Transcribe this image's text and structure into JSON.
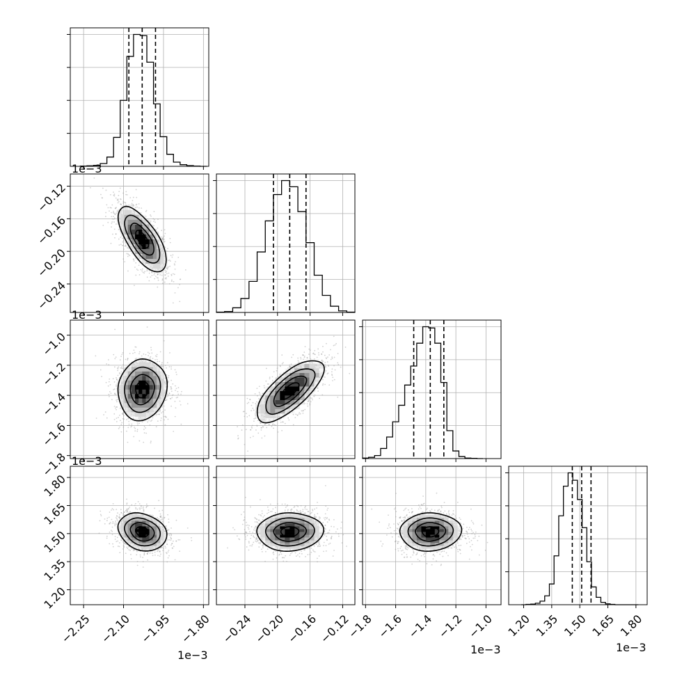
{
  "chart_data": {
    "type": "corner",
    "grid": true,
    "parameters": [
      {
        "lim": [
          -2.3,
          -1.78
        ],
        "ticks": [
          -2.25,
          -2.1,
          -1.95,
          -1.8
        ],
        "tick_labels": [
          "−2.25",
          "−2.10",
          "−1.95",
          "−1.80"
        ],
        "multiplier": "1e−3",
        "quantiles": [
          -2.08,
          -2.03,
          -1.98
        ],
        "hist_centers": [
          -2.25,
          -2.225,
          -2.2,
          -2.175,
          -2.15,
          -2.125,
          -2.1,
          -2.075,
          -2.05,
          -2.025,
          -2.0,
          -1.975,
          -1.95,
          -1.925,
          -1.9,
          -1.875,
          -1.85,
          -1.825,
          -1.8
        ],
        "hist_counts": [
          1,
          2,
          4,
          12,
          40,
          125,
          285,
          475,
          570,
          565,
          450,
          270,
          128,
          52,
          18,
          7,
          3,
          1,
          0
        ]
      },
      {
        "lim": [
          -0.275,
          -0.105
        ],
        "ticks": [
          -0.24,
          -0.2,
          -0.16,
          -0.12
        ],
        "tick_labels": [
          "−0.24",
          "−0.20",
          "−0.16",
          "−0.12"
        ],
        "multiplier": "1e−3",
        "quantiles": [
          -0.205,
          -0.185,
          -0.165
        ],
        "hist_centers": [
          -0.27,
          -0.26,
          -0.25,
          -0.24,
          -0.23,
          -0.22,
          -0.21,
          -0.2,
          -0.19,
          -0.18,
          -0.17,
          -0.16,
          -0.15,
          -0.14,
          -0.13,
          -0.12,
          -0.11
        ],
        "hist_counts": [
          1,
          3,
          15,
          45,
          100,
          195,
          295,
          380,
          425,
          405,
          325,
          225,
          120,
          55,
          20,
          5,
          1
        ]
      },
      {
        "lim": [
          -1.82,
          -0.9
        ],
        "ticks": [
          -1.8,
          -1.6,
          -1.4,
          -1.2,
          -1.0
        ],
        "tick_labels": [
          "−1.8",
          "−1.6",
          "−1.4",
          "−1.2",
          "−1.0"
        ],
        "multiplier": "1e−3",
        "quantiles": [
          -1.48,
          -1.37,
          -1.28
        ],
        "hist_centers": [
          -1.8,
          -1.76,
          -1.72,
          -1.68,
          -1.64,
          -1.6,
          -1.56,
          -1.52,
          -1.48,
          -1.44,
          -1.4,
          -1.36,
          -1.32,
          -1.28,
          -1.24,
          -1.2,
          -1.16,
          -1.12,
          -1.08,
          -1.04
        ],
        "hist_counts": [
          2,
          5,
          12,
          40,
          85,
          145,
          210,
          290,
          365,
          455,
          520,
          515,
          455,
          300,
          110,
          30,
          8,
          2,
          1,
          0
        ]
      },
      {
        "lim": [
          1.12,
          1.86
        ],
        "ticks": [
          1.2,
          1.35,
          1.5,
          1.65,
          1.8
        ],
        "tick_labels": [
          "1.20",
          "1.35",
          "1.50",
          "1.65",
          "1.80"
        ],
        "multiplier": "1e−3",
        "quantiles": [
          1.46,
          1.51,
          1.56
        ],
        "hist_centers": [
          1.2,
          1.225,
          1.25,
          1.275,
          1.3,
          1.325,
          1.35,
          1.375,
          1.4,
          1.425,
          1.45,
          1.475,
          1.5,
          1.525,
          1.55,
          1.575,
          1.6,
          1.625,
          1.65,
          1.675,
          1.7,
          1.725,
          1.75,
          1.775,
          1.8
        ],
        "hist_counts": [
          0,
          1,
          2,
          5,
          12,
          30,
          70,
          165,
          300,
          400,
          445,
          420,
          355,
          260,
          145,
          60,
          25,
          8,
          3,
          1,
          0,
          0,
          0,
          0,
          0
        ]
      }
    ],
    "pairs": [
      {
        "row": 1,
        "col": 0,
        "mean": [
          -2.03,
          -0.185
        ],
        "sd": [
          0.045,
          0.02
        ],
        "corr": -0.7
      },
      {
        "row": 2,
        "col": 0,
        "mean": [
          -2.03,
          -1.36
        ],
        "sd": [
          0.045,
          0.1
        ],
        "corr": 0.05
      },
      {
        "row": 2,
        "col": 1,
        "mean": [
          -0.185,
          -1.37
        ],
        "sd": [
          0.02,
          0.1
        ],
        "corr": 0.7
      },
      {
        "row": 3,
        "col": 0,
        "mean": [
          -2.03,
          1.51
        ],
        "sd": [
          0.045,
          0.05
        ],
        "corr": -0.25
      },
      {
        "row": 3,
        "col": 1,
        "mean": [
          -0.185,
          1.51
        ],
        "sd": [
          0.02,
          0.05
        ],
        "corr": 0.0
      },
      {
        "row": 3,
        "col": 2,
        "mean": [
          -1.37,
          1.51
        ],
        "sd": [
          0.1,
          0.05
        ],
        "corr": 0.0
      }
    ]
  }
}
